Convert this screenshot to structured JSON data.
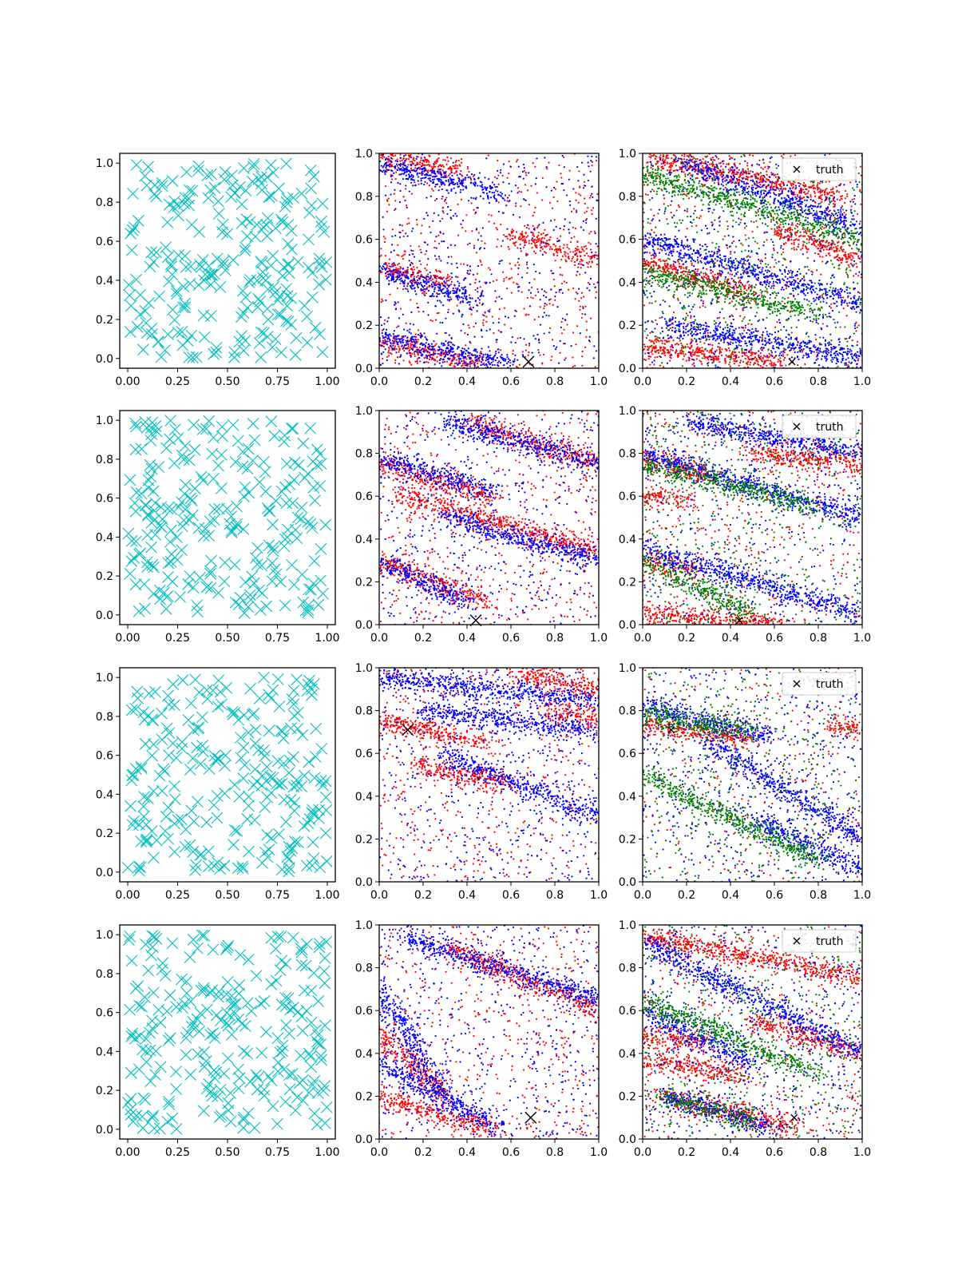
{
  "chart_data": [
    {
      "panel": "r1c1",
      "type": "scatter",
      "marker": "x",
      "color": "#00bfbf",
      "xlim": [
        -0.04,
        1.04
      ],
      "ylim": [
        -0.05,
        1.05
      ],
      "xticks": [
        "0.00",
        "0.25",
        "0.50",
        "0.75",
        "1.00"
      ],
      "yticks": [
        "0.0",
        "0.2",
        "0.4",
        "0.6",
        "0.8",
        "1.0"
      ],
      "series": [
        {
          "approx_points": 250,
          "distribution": "uniform [0,1]x[0,1]"
        }
      ]
    },
    {
      "panel": "r1c2",
      "type": "scatter",
      "xlim": [
        0,
        1
      ],
      "ylim": [
        0,
        1
      ],
      "xticks": [
        "0.0",
        "0.2",
        "0.4",
        "0.6",
        "0.8",
        "1.0"
      ],
      "yticks": [
        "0.0",
        "0.2",
        "0.4",
        "0.6",
        "0.8",
        "1.0"
      ],
      "series": [
        {
          "color": "#ff0000",
          "bands": [
            {
              "x0": 0,
              "y0": 0.98,
              "x1": 0.35,
              "y1": 0.93
            },
            {
              "x0": 0,
              "y0": 0.47,
              "x1": 0.3,
              "y1": 0.4
            },
            {
              "x0": 0,
              "y0": 0.12,
              "x1": 0.45,
              "y1": 0.02
            },
            {
              "x0": 0.6,
              "y0": 0.62,
              "x1": 1.0,
              "y1": 0.5
            }
          ]
        },
        {
          "color": "#0000ff",
          "bands": [
            {
              "x0": 0,
              "y0": 0.95,
              "x1": 0.55,
              "y1": 0.82
            },
            {
              "x0": 0,
              "y0": 0.45,
              "x1": 0.45,
              "y1": 0.32
            },
            {
              "x0": 0,
              "y0": 0.15,
              "x1": 0.6,
              "y1": 0.02
            }
          ]
        }
      ],
      "truth": {
        "x": 0.68,
        "y": 0.03
      }
    },
    {
      "panel": "r1c3",
      "type": "scatter",
      "xlim": [
        0,
        1
      ],
      "ylim": [
        0,
        1
      ],
      "xticks": [
        "0.0",
        "0.2",
        "0.4",
        "0.6",
        "0.8",
        "1.0"
      ],
      "yticks": [
        "0.0",
        "0.2",
        "0.4",
        "0.6",
        "0.8",
        "1.0"
      ],
      "series": [
        {
          "color": "#ff0000",
          "bands": [
            {
              "x0": 0,
              "y0": 0.99,
              "x1": 0.9,
              "y1": 0.8
            },
            {
              "x0": 0,
              "y0": 0.1,
              "x1": 0.65,
              "y1": 0.03
            },
            {
              "x0": 0,
              "y0": 0.5,
              "x1": 0.5,
              "y1": 0.35
            },
            {
              "x0": 0.6,
              "y0": 0.65,
              "x1": 1.0,
              "y1": 0.5
            }
          ]
        },
        {
          "color": "#0000ff",
          "bands": [
            {
              "x0": 0.2,
              "y0": 0.95,
              "x1": 1.0,
              "y1": 0.65
            },
            {
              "x0": 0,
              "y0": 0.6,
              "x1": 1.0,
              "y1": 0.3
            },
            {
              "x0": 0.1,
              "y0": 0.2,
              "x1": 1.0,
              "y1": 0.05
            }
          ]
        },
        {
          "color": "#008000",
          "bands": [
            {
              "x0": 0,
              "y0": 0.9,
              "x1": 1.0,
              "y1": 0.6
            },
            {
              "x0": 0,
              "y0": 0.45,
              "x1": 0.8,
              "y1": 0.25
            }
          ]
        }
      ],
      "truth": {
        "x": 0.68,
        "y": 0.03
      },
      "legend": {
        "label": "truth",
        "loc": "upper right"
      }
    },
    {
      "panel": "r2c1",
      "type": "scatter",
      "marker": "x",
      "color": "#00bfbf",
      "xlim": [
        -0.04,
        1.04
      ],
      "ylim": [
        -0.05,
        1.05
      ],
      "xticks": [
        "0.00",
        "0.25",
        "0.50",
        "0.75",
        "1.00"
      ],
      "yticks": [
        "0.0",
        "0.2",
        "0.4",
        "0.6",
        "0.8",
        "1.0"
      ],
      "series": [
        {
          "approx_points": 250,
          "distribution": "uniform [0,1]x[0,1]"
        }
      ]
    },
    {
      "panel": "r2c2",
      "type": "scatter",
      "xlim": [
        0,
        1
      ],
      "ylim": [
        0,
        1
      ],
      "xticks": [
        "0.0",
        "0.2",
        "0.4",
        "0.6",
        "0.8",
        "1.0"
      ],
      "yticks": [
        "0.0",
        "0.2",
        "0.4",
        "0.6",
        "0.8",
        "1.0"
      ],
      "series": [
        {
          "color": "#ff0000",
          "bands": [
            {
              "x0": 0.1,
              "y0": 0.6,
              "x1": 1.0,
              "y1": 0.35
            },
            {
              "x0": 0,
              "y0": 0.3,
              "x1": 0.5,
              "y1": 0.1
            },
            {
              "x0": 0.4,
              "y0": 0.95,
              "x1": 1.0,
              "y1": 0.75
            },
            {
              "x0": 0,
              "y0": 0.75,
              "x1": 0.5,
              "y1": 0.6
            }
          ]
        },
        {
          "color": "#0000ff",
          "bands": [
            {
              "x0": 0,
              "y0": 0.78,
              "x1": 0.5,
              "y1": 0.62
            },
            {
              "x0": 0,
              "y0": 0.3,
              "x1": 0.4,
              "y1": 0.1
            },
            {
              "x0": 0.3,
              "y0": 0.95,
              "x1": 1.0,
              "y1": 0.75
            },
            {
              "x0": 0.3,
              "y0": 0.5,
              "x1": 1.0,
              "y1": 0.3
            }
          ]
        }
      ],
      "truth": {
        "x": 0.44,
        "y": 0.02
      }
    },
    {
      "panel": "r2c3",
      "type": "scatter",
      "xlim": [
        0,
        1
      ],
      "ylim": [
        0,
        1
      ],
      "xticks": [
        "0.0",
        "0.2",
        "0.4",
        "0.6",
        "0.8",
        "1.0"
      ],
      "yticks": [
        "0.0",
        "0.2",
        "0.4",
        "0.6",
        "0.8",
        "1.0"
      ],
      "series": [
        {
          "color": "#ff0000",
          "bands": [
            {
              "x0": 0,
              "y0": 0.06,
              "x1": 0.6,
              "y1": 0.0
            },
            {
              "x0": 0,
              "y0": 0.78,
              "x1": 0.3,
              "y1": 0.7
            },
            {
              "x0": 0,
              "y0": 0.6,
              "x1": 0.2,
              "y1": 0.58
            },
            {
              "x0": 0,
              "y0": 0.3,
              "x1": 0.25,
              "y1": 0.25
            },
            {
              "x0": 0.5,
              "y0": 0.8,
              "x1": 1.0,
              "y1": 0.75
            }
          ]
        },
        {
          "color": "#0000ff",
          "bands": [
            {
              "x0": 0,
              "y0": 0.8,
              "x1": 1.0,
              "y1": 0.5
            },
            {
              "x0": 0,
              "y0": 0.35,
              "x1": 1.0,
              "y1": 0.05
            },
            {
              "x0": 0.2,
              "y0": 0.95,
              "x1": 1.0,
              "y1": 0.8
            }
          ]
        },
        {
          "color": "#008000",
          "bands": [
            {
              "x0": 0,
              "y0": 0.75,
              "x1": 0.8,
              "y1": 0.55
            },
            {
              "x0": 0,
              "y0": 0.3,
              "x1": 0.5,
              "y1": 0.05
            }
          ]
        }
      ],
      "truth": {
        "x": 0.44,
        "y": 0.02
      },
      "legend": {
        "label": "truth",
        "loc": "upper right"
      }
    },
    {
      "panel": "r3c1",
      "type": "scatter",
      "marker": "x",
      "color": "#00bfbf",
      "xlim": [
        -0.04,
        1.04
      ],
      "ylim": [
        -0.05,
        1.05
      ],
      "xticks": [
        "0.00",
        "0.25",
        "0.50",
        "0.75",
        "1.00"
      ],
      "yticks": [
        "0.0",
        "0.2",
        "0.4",
        "0.6",
        "0.8",
        "1.0"
      ],
      "series": [
        {
          "approx_points": 250,
          "distribution": "uniform [0,1]x[0,1]"
        }
      ]
    },
    {
      "panel": "r3c2",
      "type": "scatter",
      "xlim": [
        0,
        1
      ],
      "ylim": [
        0,
        1
      ],
      "xticks": [
        "0.0",
        "0.2",
        "0.4",
        "0.6",
        "0.8",
        "1.0"
      ],
      "yticks": [
        "0.0",
        "0.2",
        "0.4",
        "0.6",
        "0.8",
        "1.0"
      ],
      "series": [
        {
          "color": "#ff0000",
          "bands": [
            {
              "x0": 0,
              "y0": 0.75,
              "x1": 0.5,
              "y1": 0.65
            },
            {
              "x0": 0.15,
              "y0": 0.55,
              "x1": 0.6,
              "y1": 0.45
            },
            {
              "x0": 0.6,
              "y0": 0.98,
              "x1": 1.0,
              "y1": 0.9
            },
            {
              "x0": 0.75,
              "y0": 0.8,
              "x1": 1.0,
              "y1": 0.75
            }
          ]
        },
        {
          "color": "#0000ff",
          "bands": [
            {
              "x0": 0,
              "y0": 0.95,
              "x1": 1.0,
              "y1": 0.85
            },
            {
              "x0": 0.2,
              "y0": 0.8,
              "x1": 1.0,
              "y1": 0.7
            },
            {
              "x0": 0.3,
              "y0": 0.6,
              "x1": 1.0,
              "y1": 0.3
            }
          ]
        }
      ],
      "truth": {
        "x": 0.13,
        "y": 0.71
      }
    },
    {
      "panel": "r3c3",
      "type": "scatter",
      "xlim": [
        0,
        1
      ],
      "ylim": [
        0,
        1
      ],
      "xticks": [
        "0.0",
        "0.2",
        "0.4",
        "0.6",
        "0.8",
        "1.0"
      ],
      "yticks": [
        "0.0",
        "0.2",
        "0.4",
        "0.6",
        "0.8",
        "1.0"
      ],
      "series": [
        {
          "color": "#ff0000",
          "bands": [
            {
              "x0": 0,
              "y0": 0.73,
              "x1": 0.5,
              "y1": 0.67
            },
            {
              "x0": 0.85,
              "y0": 0.73,
              "x1": 1.0,
              "y1": 0.72
            }
          ]
        },
        {
          "color": "#0000ff",
          "bands": [
            {
              "x0": 0,
              "y0": 0.82,
              "x1": 0.6,
              "y1": 0.68
            },
            {
              "x0": 0.3,
              "y0": 0.65,
              "x1": 1.0,
              "y1": 0.2
            },
            {
              "x0": 0.5,
              "y0": 0.3,
              "x1": 1.0,
              "y1": 0.05
            }
          ]
        },
        {
          "color": "#008000",
          "bands": [
            {
              "x0": 0,
              "y0": 0.78,
              "x1": 0.5,
              "y1": 0.7
            },
            {
              "x0": 0,
              "y0": 0.5,
              "x1": 0.8,
              "y1": 0.1
            }
          ]
        }
      ],
      "truth": {
        "x": 0.13,
        "y": 0.71
      },
      "legend": {
        "label": "truth",
        "loc": "upper right"
      }
    },
    {
      "panel": "r4c1",
      "type": "scatter",
      "marker": "x",
      "color": "#00bfbf",
      "xlim": [
        -0.04,
        1.04
      ],
      "ylim": [
        -0.05,
        1.05
      ],
      "xticks": [
        "0.00",
        "0.25",
        "0.50",
        "0.75",
        "1.00"
      ],
      "yticks": [
        "0.0",
        "0.2",
        "0.4",
        "0.6",
        "0.8",
        "1.0"
      ],
      "series": [
        {
          "approx_points": 250,
          "distribution": "uniform [0,1]x[0,1]"
        }
      ]
    },
    {
      "panel": "r4c2",
      "type": "scatter",
      "xlim": [
        0,
        1
      ],
      "ylim": [
        0,
        1
      ],
      "xticks": [
        "0.0",
        "0.2",
        "0.4",
        "0.6",
        "0.8",
        "1.0"
      ],
      "yticks": [
        "0.0",
        "0.2",
        "0.4",
        "0.6",
        "0.8",
        "1.0"
      ],
      "series": [
        {
          "color": "#ff0000",
          "bands": [
            {
              "x0": 0,
              "y0": 0.2,
              "x1": 0.5,
              "y1": 0.05
            },
            {
              "x0": 0,
              "y0": 0.5,
              "x1": 0.3,
              "y1": 0.2
            },
            {
              "x0": 0.3,
              "y0": 0.9,
              "x1": 1.0,
              "y1": 0.6
            }
          ]
        },
        {
          "color": "#0000ff",
          "bands": [
            {
              "x0": 0,
              "y0": 0.35,
              "x1": 0.55,
              "y1": 0.05
            },
            {
              "x0": 0.1,
              "y0": 0.95,
              "x1": 1.0,
              "y1": 0.65
            },
            {
              "x0": 0,
              "y0": 0.7,
              "x1": 0.3,
              "y1": 0.2
            }
          ]
        }
      ],
      "truth": {
        "x": 0.69,
        "y": 0.1
      }
    },
    {
      "panel": "r4c3",
      "type": "scatter",
      "xlim": [
        0,
        1
      ],
      "ylim": [
        0,
        1
      ],
      "xticks": [
        "0.0",
        "0.2",
        "0.4",
        "0.6",
        "0.8",
        "1.0"
      ],
      "yticks": [
        "0.0",
        "0.2",
        "0.4",
        "0.6",
        "0.8",
        "1.0"
      ],
      "series": [
        {
          "color": "#ff0000",
          "bands": [
            {
              "x0": 0,
              "y0": 0.95,
              "x1": 1.0,
              "y1": 0.75
            },
            {
              "x0": 0,
              "y0": 0.48,
              "x1": 0.3,
              "y1": 0.45
            },
            {
              "x0": 0,
              "y0": 0.37,
              "x1": 0.45,
              "y1": 0.3
            },
            {
              "x0": 0.1,
              "y0": 0.2,
              "x1": 0.7,
              "y1": 0.05
            },
            {
              "x0": 0.5,
              "y0": 0.55,
              "x1": 1.0,
              "y1": 0.4
            }
          ]
        },
        {
          "color": "#0000ff",
          "bands": [
            {
              "x0": 0,
              "y0": 0.92,
              "x1": 1.0,
              "y1": 0.4
            },
            {
              "x0": 0,
              "y0": 0.6,
              "x1": 0.5,
              "y1": 0.35
            },
            {
              "x0": 0.1,
              "y0": 0.2,
              "x1": 0.6,
              "y1": 0.05
            }
          ]
        },
        {
          "color": "#008000",
          "bands": [
            {
              "x0": 0,
              "y0": 0.65,
              "x1": 0.8,
              "y1": 0.3
            },
            {
              "x0": 0.1,
              "y0": 0.2,
              "x1": 0.5,
              "y1": 0.08
            }
          ]
        }
      ],
      "truth": {
        "x": 0.69,
        "y": 0.1
      },
      "legend": {
        "label": "truth",
        "loc": "upper right"
      }
    }
  ]
}
